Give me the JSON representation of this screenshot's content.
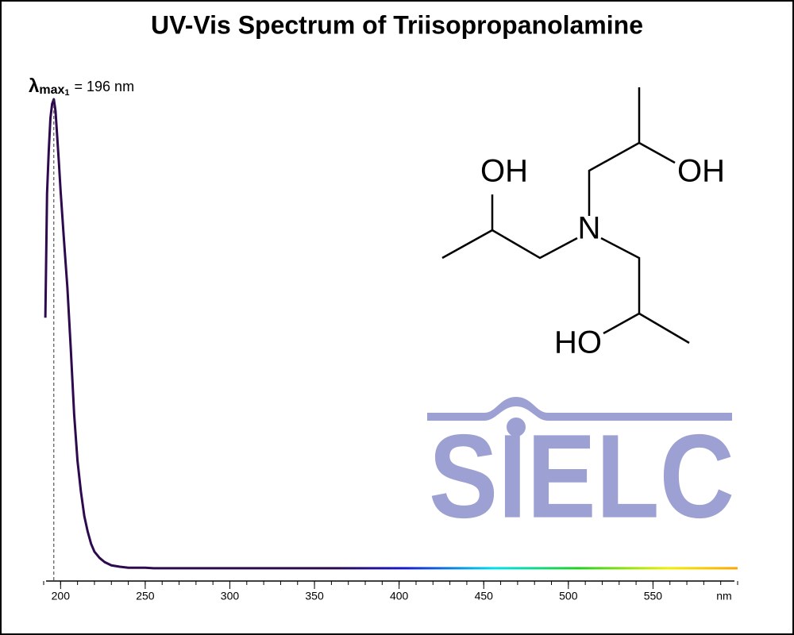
{
  "chart_data": {
    "type": "line",
    "title": "UV-Vis Spectrum of Triisopropanolamine",
    "xlabel": "nm",
    "x": [
      191,
      192,
      193,
      194,
      195,
      196,
      197,
      198,
      199,
      200,
      202,
      204,
      206,
      208,
      210,
      212,
      214,
      216,
      218,
      220,
      223,
      226,
      230,
      235,
      240,
      250,
      255,
      300,
      400,
      500,
      600
    ],
    "series": [
      {
        "color": "#2d0a4e",
        "values": [
          0.535,
          0.8,
          0.89,
          0.96,
          0.99,
          1.0,
          0.975,
          0.92,
          0.865,
          0.805,
          0.7,
          0.6,
          0.47,
          0.33,
          0.23,
          0.165,
          0.113,
          0.08,
          0.054,
          0.037,
          0.024,
          0.015,
          0.008,
          0.005,
          0.003,
          0.003,
          0.002,
          0.002,
          0.002,
          0.002,
          0.002
        ]
      }
    ],
    "xlim": [
      190,
      600
    ],
    "xticks": [
      200,
      250,
      300,
      350,
      400,
      450,
      500,
      550
    ],
    "ylim": [
      0,
      1.0
    ],
    "annotations": [
      {
        "x": 196,
        "symbol": "λ",
        "subscript": "max",
        "index": "1",
        "text": "= 196 nm"
      }
    ]
  },
  "structure": {
    "labels": [
      "OH",
      "OH",
      "N",
      "HO"
    ]
  },
  "logo": "SIELC"
}
